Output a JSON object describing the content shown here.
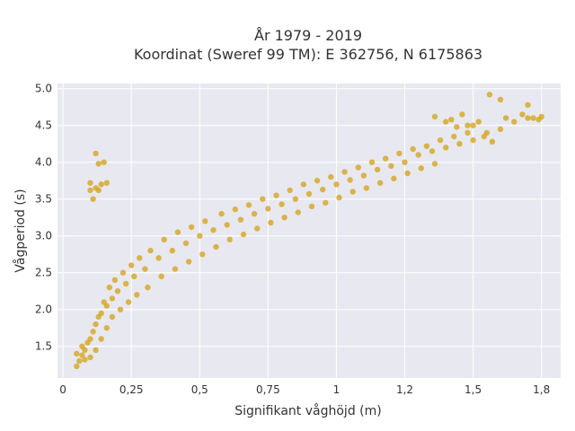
{
  "chart_data": {
    "type": "scatter",
    "title_line1": "År 1979 - 2019",
    "title_line2": "Koordinat (Sweref 99 TM): E 362756, N 6175863",
    "xlabel": "Signifikant våghöjd (m)",
    "ylabel": "Vågperiod (s)",
    "xlim": [
      -0.02,
      1.82
    ],
    "ylim": [
      1.07,
      5.07
    ],
    "x_ticks": [
      {
        "value": 0,
        "label": "0"
      },
      {
        "value": 0.25,
        "label": "0,25"
      },
      {
        "value": 0.5,
        "label": "0,5"
      },
      {
        "value": 0.75,
        "label": "0,75"
      },
      {
        "value": 1.0,
        "label": "1"
      },
      {
        "value": 1.25,
        "label": "1,2"
      },
      {
        "value": 1.5,
        "label": "1,5"
      },
      {
        "value": 1.75,
        "label": "1,8"
      }
    ],
    "y_ticks": [
      {
        "value": 1.5,
        "label": "1.5"
      },
      {
        "value": 2.0,
        "label": "2.0"
      },
      {
        "value": 2.5,
        "label": "2.5"
      },
      {
        "value": 3.0,
        "label": "3.0"
      },
      {
        "value": 3.5,
        "label": "3.5"
      },
      {
        "value": 4.0,
        "label": "4.0"
      },
      {
        "value": 4.5,
        "label": "4.5"
      },
      {
        "value": 5.0,
        "label": "5.0"
      }
    ],
    "grid": true,
    "colors": {
      "marker": "#d4a520",
      "plot_bg": "#e8e8f0",
      "grid": "#ffffff"
    },
    "x": [
      0.05,
      0.07,
      0.08,
      0.1,
      0.12,
      0.14,
      0.16,
      0.18,
      0.2,
      0.23,
      0.26,
      0.3,
      0.35,
      0.4,
      0.45,
      0.5,
      0.55,
      0.6,
      0.65,
      0.7,
      0.75,
      0.8,
      0.85,
      0.9,
      0.95,
      1.0,
      1.05,
      1.1,
      1.15,
      1.2,
      1.25,
      1.3,
      1.35,
      1.4,
      1.45,
      1.5,
      1.55,
      1.6,
      1.65,
      1.7,
      1.75,
      0.05,
      0.07,
      0.09,
      0.11,
      0.13,
      0.15,
      0.17,
      0.19,
      0.22,
      0.25,
      0.28,
      0.32,
      0.37,
      0.42,
      0.47,
      0.52,
      0.58,
      0.63,
      0.68,
      0.73,
      0.78,
      0.83,
      0.88,
      0.93,
      0.98,
      1.03,
      1.08,
      1.13,
      1.18,
      1.23,
      1.28,
      1.33,
      1.38,
      1.43,
      1.48,
      0.06,
      0.08,
      0.1,
      0.12,
      0.14,
      0.16,
      0.18,
      0.21,
      0.24,
      0.27,
      0.31,
      0.36,
      0.41,
      0.46,
      0.51,
      0.56,
      0.61,
      0.66,
      0.71,
      0.76,
      0.81,
      0.86,
      0.91,
      0.96,
      1.01,
      1.06,
      1.11,
      1.16,
      1.21,
      1.26,
      1.31,
      1.36,
      0.1,
      0.12,
      0.13,
      0.14,
      0.16,
      0.12,
      0.13,
      0.1,
      0.11,
      0.15,
      1.44,
      1.48,
      1.52,
      1.56,
      1.6,
      1.62,
      1.68,
      1.7,
      1.72,
      1.74,
      1.54,
      1.57,
      1.36,
      1.4,
      1.42,
      1.46,
      1.5
    ],
    "y": [
      1.23,
      1.38,
      1.45,
      1.6,
      1.8,
      1.95,
      2.05,
      2.15,
      2.25,
      2.35,
      2.45,
      2.55,
      2.7,
      2.8,
      2.9,
      3.0,
      3.08,
      3.15,
      3.22,
      3.3,
      3.37,
      3.43,
      3.5,
      3.57,
      3.63,
      3.7,
      3.76,
      3.82,
      3.9,
      3.95,
      4.0,
      4.1,
      4.15,
      4.2,
      4.25,
      4.3,
      4.4,
      4.45,
      4.55,
      4.6,
      4.62,
      1.4,
      1.5,
      1.55,
      1.7,
      1.9,
      2.1,
      2.3,
      2.4,
      2.5,
      2.6,
      2.7,
      2.8,
      2.95,
      3.05,
      3.12,
      3.2,
      3.3,
      3.36,
      3.42,
      3.5,
      3.55,
      3.62,
      3.7,
      3.75,
      3.8,
      3.87,
      3.93,
      4.0,
      4.05,
      4.12,
      4.18,
      4.22,
      4.3,
      4.35,
      4.4,
      1.3,
      1.32,
      1.35,
      1.45,
      1.6,
      1.75,
      1.9,
      2.0,
      2.1,
      2.2,
      2.3,
      2.45,
      2.55,
      2.65,
      2.75,
      2.85,
      2.95,
      3.02,
      3.1,
      3.18,
      3.25,
      3.32,
      3.4,
      3.45,
      3.52,
      3.6,
      3.65,
      3.72,
      3.78,
      3.85,
      3.92,
      3.98,
      3.72,
      3.65,
      3.62,
      3.7,
      3.72,
      4.12,
      3.98,
      3.62,
      3.5,
      4.0,
      4.48,
      4.5,
      4.55,
      4.92,
      4.85,
      4.6,
      4.65,
      4.78,
      4.6,
      4.58,
      4.35,
      4.28,
      4.62,
      4.55,
      4.58,
      4.65,
      4.5
    ]
  }
}
